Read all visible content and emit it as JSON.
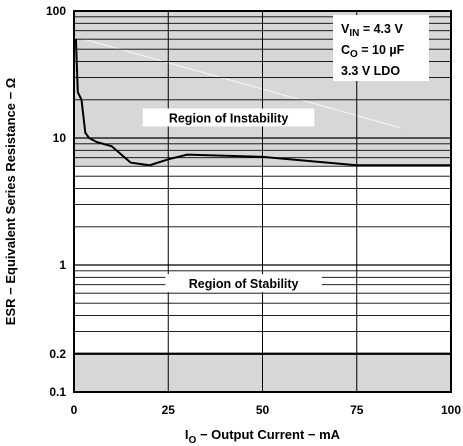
{
  "chart_data": {
    "type": "line",
    "x_scale": "linear",
    "y_scale": "log",
    "xlim": [
      0,
      100
    ],
    "ylim": [
      0.1,
      100
    ],
    "x_ticks": [
      {
        "value": 0,
        "label": "0"
      },
      {
        "value": 25,
        "label": "25"
      },
      {
        "value": 50,
        "label": "50"
      },
      {
        "value": 75,
        "label": "75"
      },
      {
        "value": 100,
        "label": "100"
      }
    ],
    "y_ticks": [
      {
        "value": 0.1,
        "label": "0.1"
      },
      {
        "value": 0.2,
        "label": "0.2"
      },
      {
        "value": 1,
        "label": "1"
      },
      {
        "value": 10,
        "label": "10"
      },
      {
        "value": 100,
        "label": "100"
      }
    ],
    "xlabel": {
      "main": "I",
      "sub": "O",
      "rest": " − Output Current − mA"
    },
    "ylabel": "ESR − Equivalent Series Resistance − Ω",
    "grid": true,
    "series": [
      {
        "points": [
          [
            0.5,
            60
          ],
          [
            1,
            23
          ],
          [
            2,
            20
          ],
          [
            3,
            11
          ],
          [
            4,
            10
          ],
          [
            6,
            9.3
          ],
          [
            10,
            8.6
          ],
          [
            15,
            6.4
          ],
          [
            20,
            6.1
          ],
          [
            25,
            6.8
          ],
          [
            30,
            7.4
          ],
          [
            50,
            7.1
          ],
          [
            75,
            6.1
          ],
          [
            100,
            6.1
          ]
        ]
      }
    ],
    "shaded_regions": [
      {
        "y_from": 6.1,
        "y_to": 100,
        "label": "Region of Instability",
        "label_at": [
          41,
          13.5
        ]
      },
      {
        "y_from": 0.1,
        "y_to": 0.2,
        "label": "",
        "label_at": null
      }
    ],
    "stability_label": {
      "text": "Region of Stability",
      "at": [
        45,
        0.67
      ]
    },
    "threshold_line_y": 0.2,
    "conditions_box": {
      "line1": {
        "main": "V",
        "sub": "IN",
        "rest": " = 4.3 V"
      },
      "line2": {
        "main": "C",
        "sub": "O",
        "rest": " = 10 µF"
      },
      "line3": {
        "main": "3.3 V LDO",
        "sub": "",
        "rest": ""
      }
    },
    "colors": {
      "shade": "#d7d7d7",
      "grid": "#000000",
      "curve": "#000000",
      "frame": "#000000"
    }
  }
}
